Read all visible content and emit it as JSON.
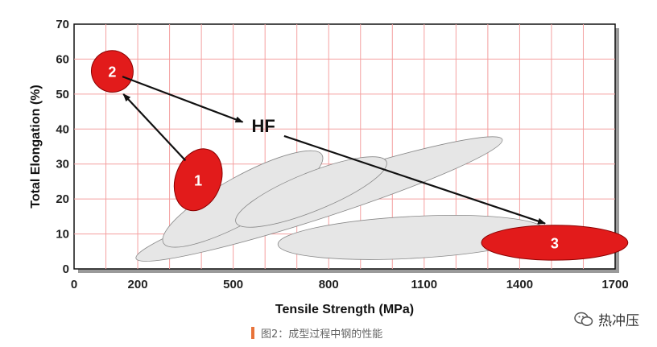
{
  "chart_data": {
    "type": "scatter",
    "xlabel": "Tensile Strength (MPa)",
    "ylabel": "Total Elongation (%)",
    "xlim": [
      0,
      1700
    ],
    "ylim": [
      0,
      70
    ],
    "x_ticks": [
      "0",
      "200",
      "500",
      "800",
      "1100",
      "1400",
      "1700"
    ],
    "y_ticks": [
      "0",
      "10",
      "20",
      "30",
      "40",
      "50",
      "60",
      "70"
    ],
    "grid": true,
    "grid_color": "#f4a0a0",
    "regions": [
      {
        "label": "",
        "fill": "#e6e6e6",
        "cx": 770,
        "cy": 20,
        "rx": 605,
        "ry": 5.5,
        "angle_deg": -18
      },
      {
        "label": "",
        "fill": "#e6e6e6",
        "cx": 530,
        "cy": 20,
        "rx": 285,
        "ry": 6.5,
        "angle_deg": -29
      },
      {
        "label": "",
        "fill": "#e6e6e6",
        "cx": 745,
        "cy": 22,
        "rx": 255,
        "ry": 5.5,
        "angle_deg": -22
      },
      {
        "label": "",
        "fill": "#e6e6e6",
        "cx": 1060,
        "cy": 9,
        "rx": 420,
        "ry": 6,
        "angle_deg": -3
      },
      {
        "label": "1",
        "fill": "#e21b1b",
        "cx": 390,
        "cy": 25.5,
        "rx": 100,
        "ry": 6.5,
        "angle_deg": -70
      },
      {
        "label": "2",
        "fill": "#e21b1b",
        "cx": 120,
        "cy": 56.5,
        "rx": 65,
        "ry": 6,
        "angle_deg": -55
      },
      {
        "label": "3",
        "fill": "#e21b1b",
        "cx": 1510,
        "cy": 7.5,
        "rx": 230,
        "ry": 5,
        "angle_deg": 0
      }
    ],
    "arrows": [
      {
        "from": [
          350,
          31
        ],
        "to": [
          155,
          50
        ]
      },
      {
        "from": [
          152,
          55
        ],
        "to": [
          530,
          42
        ]
      },
      {
        "from": [
          660,
          38
        ],
        "to": [
          1480,
          13
        ]
      }
    ],
    "annotations": [
      {
        "text": "HF",
        "x": 595,
        "y": 41
      }
    ]
  },
  "caption": {
    "text": "图2：成型过程中钢的性能"
  },
  "watermark": {
    "icon": "wechat-icon",
    "text": "热冲压"
  }
}
